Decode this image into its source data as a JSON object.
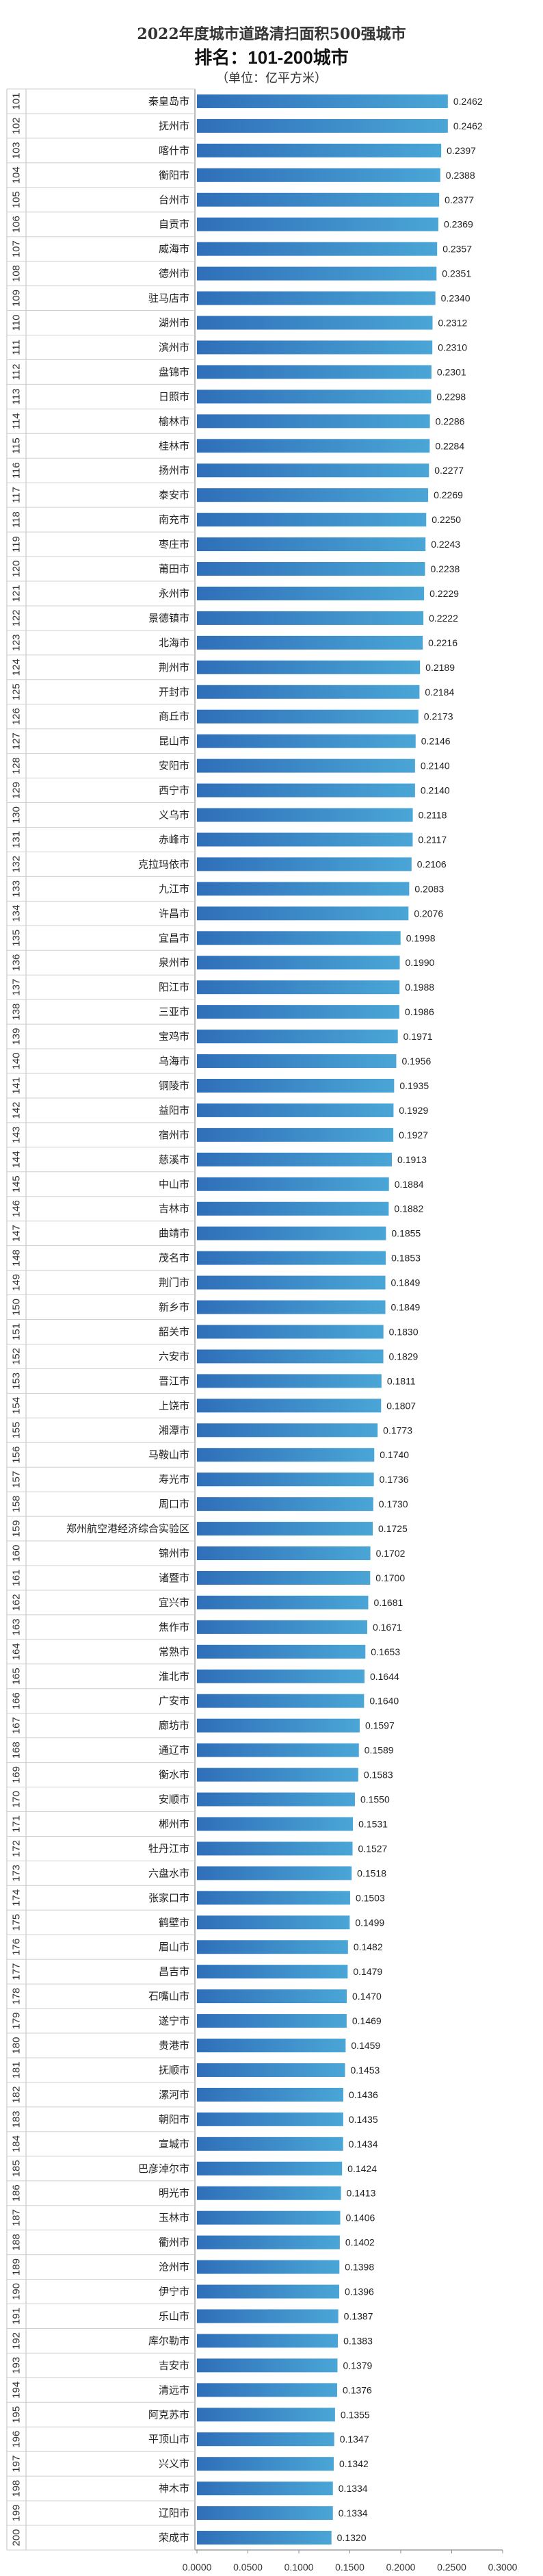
{
  "chart_data": {
    "type": "bar",
    "orientation": "horizontal",
    "title": "2022年度城市道路清扫面积500强城市",
    "subtitle": "排名：101-200城市",
    "unit_label": "（单位：亿平方米）",
    "xlim": [
      0,
      0.3
    ],
    "x_ticks": [
      "0.0000",
      "0.0500",
      "0.1000",
      "0.1500",
      "0.2000",
      "0.2500",
      "0.3000"
    ],
    "grid": false,
    "bar_color": "#3a86c8",
    "ranks": [
      101,
      102,
      103,
      104,
      105,
      106,
      107,
      108,
      109,
      110,
      111,
      112,
      113,
      114,
      115,
      116,
      117,
      118,
      119,
      120,
      121,
      122,
      123,
      124,
      125,
      126,
      127,
      128,
      129,
      130,
      131,
      132,
      133,
      134,
      135,
      136,
      137,
      138,
      139,
      140,
      141,
      142,
      143,
      144,
      145,
      146,
      147,
      148,
      149,
      150,
      151,
      152,
      153,
      154,
      155,
      156,
      157,
      158,
      159,
      160,
      161,
      162,
      163,
      164,
      165,
      166,
      167,
      168,
      169,
      170,
      171,
      172,
      173,
      174,
      175,
      176,
      177,
      178,
      179,
      180,
      181,
      182,
      183,
      184,
      185,
      186,
      187,
      188,
      189,
      190,
      191,
      192,
      193,
      194,
      195,
      196,
      197,
      198,
      199,
      200
    ],
    "categories": [
      "秦皇岛市",
      "抚州市",
      "喀什市",
      "衡阳市",
      "台州市",
      "自贡市",
      "威海市",
      "德州市",
      "驻马店市",
      "湖州市",
      "滨州市",
      "盘锦市",
      "日照市",
      "榆林市",
      "桂林市",
      "扬州市",
      "泰安市",
      "南充市",
      "枣庄市",
      "莆田市",
      "永州市",
      "景德镇市",
      "北海市",
      "荆州市",
      "开封市",
      "商丘市",
      "昆山市",
      "安阳市",
      "西宁市",
      "义乌市",
      "赤峰市",
      "克拉玛依市",
      "九江市",
      "许昌市",
      "宜昌市",
      "泉州市",
      "阳江市",
      "三亚市",
      "宝鸡市",
      "乌海市",
      "铜陵市",
      "益阳市",
      "宿州市",
      "慈溪市",
      "中山市",
      "吉林市",
      "曲靖市",
      "茂名市",
      "荆门市",
      "新乡市",
      "韶关市",
      "六安市",
      "晋江市",
      "上饶市",
      "湘潭市",
      "马鞍山市",
      "寿光市",
      "周口市",
      "郑州航空港经济综合实验区",
      "锦州市",
      "诸暨市",
      "宜兴市",
      "焦作市",
      "常熟市",
      "淮北市",
      "广安市",
      "廊坊市",
      "通辽市",
      "衡水市",
      "安顺市",
      "郴州市",
      "牡丹江市",
      "六盘水市",
      "张家口市",
      "鹤壁市",
      "眉山市",
      "昌吉市",
      "石嘴山市",
      "遂宁市",
      "贵港市",
      "抚顺市",
      "漯河市",
      "朝阳市",
      "宣城市",
      "巴彦淖尔市",
      "明光市",
      "玉林市",
      "衢州市",
      "沧州市",
      "伊宁市",
      "乐山市",
      "库尔勒市",
      "吉安市",
      "清远市",
      "阿克苏市",
      "平顶山市",
      "兴义市",
      "神木市",
      "辽阳市",
      "荣成市"
    ],
    "values": [
      0.2462,
      0.2462,
      0.2397,
      0.2388,
      0.2377,
      0.2369,
      0.2357,
      0.2351,
      0.234,
      0.2312,
      0.231,
      0.2301,
      0.2298,
      0.2286,
      0.2284,
      0.2277,
      0.2269,
      0.225,
      0.2243,
      0.2238,
      0.2229,
      0.2222,
      0.2216,
      0.2189,
      0.2184,
      0.2173,
      0.2146,
      0.214,
      0.214,
      0.2118,
      0.2117,
      0.2106,
      0.2083,
      0.2076,
      0.1998,
      0.199,
      0.1988,
      0.1986,
      0.1971,
      0.1956,
      0.1935,
      0.1929,
      0.1927,
      0.1913,
      0.1884,
      0.1882,
      0.1855,
      0.1853,
      0.1849,
      0.1849,
      0.183,
      0.1829,
      0.1811,
      0.1807,
      0.1773,
      0.174,
      0.1736,
      0.173,
      0.1725,
      0.1702,
      0.17,
      0.1681,
      0.1671,
      0.1653,
      0.1644,
      0.164,
      0.1597,
      0.1589,
      0.1583,
      0.155,
      0.1531,
      0.1527,
      0.1518,
      0.1503,
      0.1499,
      0.1482,
      0.1479,
      0.147,
      0.1469,
      0.1459,
      0.1453,
      0.1436,
      0.1435,
      0.1434,
      0.1424,
      0.1413,
      0.1406,
      0.1402,
      0.1398,
      0.1396,
      0.1387,
      0.1383,
      0.1379,
      0.1376,
      0.1355,
      0.1347,
      0.1342,
      0.1334,
      0.1334,
      0.132
    ]
  }
}
